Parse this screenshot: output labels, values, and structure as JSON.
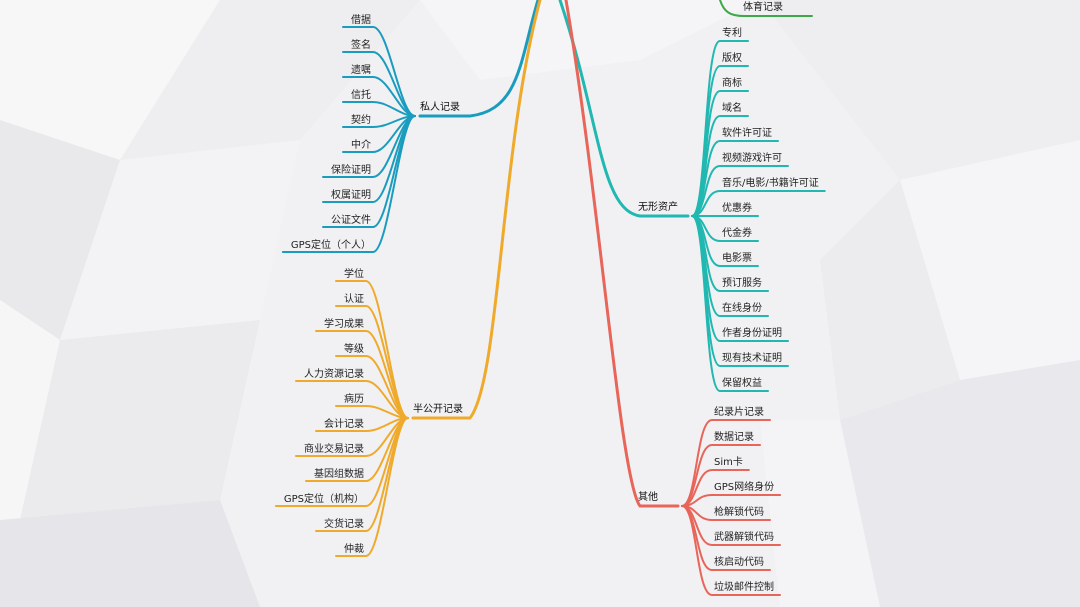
{
  "colors": {
    "private": "#1a9cbf",
    "semi": "#efaa2c",
    "intangible": "#20b8b0",
    "other": "#e8655a",
    "top": "#3fa84a"
  },
  "branches": {
    "private": "私人记录",
    "semi": "半公开记录",
    "intangible": "无形资产",
    "other": "其他"
  },
  "top_item": "体育记录",
  "private_items": [
    "借据",
    "签名",
    "遗嘱",
    "信托",
    "契约",
    "中介",
    "保险证明",
    "权属证明",
    "公证文件",
    "GPS定位（个人）"
  ],
  "semi_items": [
    "学位",
    "认证",
    "学习成果",
    "等级",
    "人力资源记录",
    "病历",
    "会计记录",
    "商业交易记录",
    "基因组数据",
    "GPS定位（机构）",
    "交货记录",
    "仲裁"
  ],
  "intangible_items": [
    "专利",
    "版权",
    "商标",
    "域名",
    "软件许可证",
    "视频游戏许可",
    "音乐/电影/书籍许可证",
    "优惠券",
    "代金券",
    "电影票",
    "预订服务",
    "在线身份",
    "作者身份证明",
    "现有技术证明",
    "保留权益"
  ],
  "other_items": [
    "纪录片记录",
    "数据记录",
    "Sim卡",
    "GPS网络身份",
    "枪解锁代码",
    "武器解锁代码",
    "核启动代码",
    "垃圾邮件控制"
  ]
}
